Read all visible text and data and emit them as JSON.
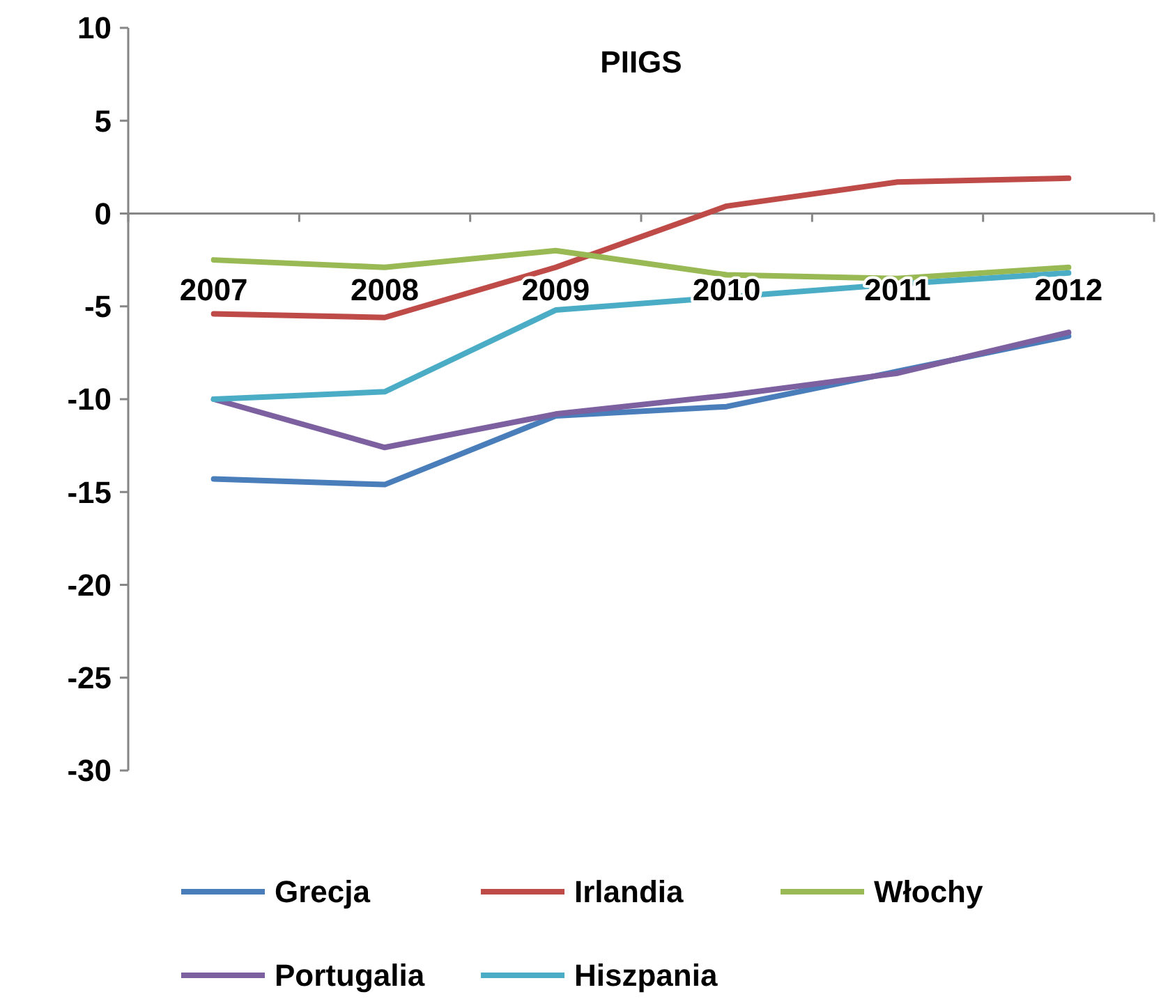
{
  "chart_data": {
    "type": "line",
    "title": "PIIGS",
    "categories": [
      "2007",
      "2008",
      "2009",
      "2010",
      "2011",
      "2012"
    ],
    "series": [
      {
        "name": "Grecja",
        "color": "#4a7ebb",
        "values": [
          -14.3,
          -14.6,
          -10.9,
          -10.4,
          -8.5,
          -6.6
        ]
      },
      {
        "name": "Irlandia",
        "color": "#be4b48",
        "values": [
          -5.4,
          -5.6,
          -2.9,
          0.4,
          1.7,
          1.9
        ]
      },
      {
        "name": "Włochy",
        "color": "#98b954",
        "values": [
          -2.5,
          -2.9,
          -2.0,
          -3.3,
          -3.5,
          -2.9
        ]
      },
      {
        "name": "Portugalia",
        "color": "#7d60a0",
        "values": [
          -10.0,
          -12.6,
          -10.8,
          -9.8,
          -8.6,
          -6.4
        ]
      },
      {
        "name": "Hiszpania",
        "color": "#4bacc6",
        "values": [
          -10.0,
          -9.6,
          -5.2,
          -4.5,
          -3.8,
          -3.2
        ]
      }
    ],
    "ylim": [
      -30,
      10
    ],
    "yticks": [
      -30,
      -25,
      -20,
      -15,
      -10,
      -5,
      0,
      5,
      10
    ],
    "legend": "bottom",
    "marker": "none",
    "line_style": "solid",
    "grid": false
  }
}
